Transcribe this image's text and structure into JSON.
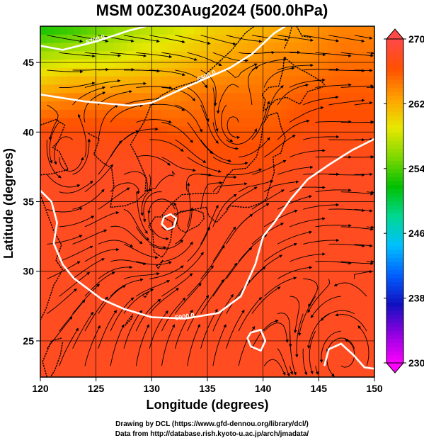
{
  "chart_data": {
    "type": "heatmap",
    "title": "MSM 00Z30Aug2024 (500.0hPa)",
    "xlabel": "Longitude (degrees)",
    "ylabel": "Latitude  (degrees)",
    "xlim": [
      120,
      150
    ],
    "ylim": [
      22.4,
      47.6
    ],
    "x_ticks": [
      120,
      125,
      130,
      135,
      140,
      145,
      150
    ],
    "y_ticks": [
      25,
      30,
      35,
      40,
      45
    ],
    "colorbar": {
      "min": 230,
      "max": 270,
      "ticks": [
        230,
        238,
        246,
        254,
        262,
        270
      ],
      "colors": [
        "#ff00ff",
        "#9000e0",
        "#1010c0",
        "#0060ff",
        "#00c0ff",
        "#00d890",
        "#00c000",
        "#80d800",
        "#e8e800",
        "#ffa000",
        "#ff5000",
        "#ff4848"
      ]
    },
    "temperature_field": [
      {
        "lat": 47.6,
        "values": [
          252,
          253,
          255,
          257,
          258,
          260,
          261,
          262,
          263,
          264,
          264
        ]
      },
      {
        "lat": 45.0,
        "values": [
          258,
          259,
          259,
          260,
          261,
          262,
          263,
          264,
          264,
          265,
          265
        ]
      },
      {
        "lat": 42.5,
        "values": [
          263,
          264,
          264,
          264,
          264,
          265,
          265,
          265,
          266,
          266,
          266
        ]
      },
      {
        "lat": 40.0,
        "values": [
          267,
          267,
          267,
          267,
          266,
          266,
          266,
          266,
          267,
          267,
          267
        ]
      },
      {
        "lat": 37.5,
        "values": [
          268,
          268,
          268,
          268,
          268,
          267,
          267,
          267,
          268,
          268,
          268
        ]
      },
      {
        "lat": 35.0,
        "values": [
          268,
          268,
          268,
          268,
          268,
          268,
          268,
          268,
          268,
          268,
          268
        ]
      },
      {
        "lat": 30.0,
        "values": [
          268,
          268,
          268,
          268,
          268,
          268,
          268,
          268,
          268,
          268,
          268
        ]
      },
      {
        "lat": 25.0,
        "values": [
          268,
          268,
          268,
          268,
          268,
          268,
          268,
          268,
          268,
          268,
          268
        ]
      },
      {
        "lat": 22.4,
        "values": [
          268,
          268,
          268,
          268,
          268,
          268,
          268,
          268,
          268,
          268,
          268
        ]
      }
    ],
    "temperature_lons": [
      120,
      123,
      126,
      129,
      132,
      135,
      138,
      141,
      144,
      147,
      150
    ],
    "contours": [
      {
        "label": "5700.0",
        "points": [
          [
            120,
            46.2
          ],
          [
            122,
            45.9
          ],
          [
            125,
            46.5
          ],
          [
            128,
            47.3
          ],
          [
            129.5,
            47.6
          ]
        ]
      },
      {
        "label": "5800.0",
        "points": [
          [
            120,
            42.7
          ],
          [
            124,
            42.2
          ],
          [
            128,
            41.9
          ],
          [
            130,
            42.1
          ],
          [
            133,
            43.2
          ],
          [
            135,
            43.9
          ],
          [
            137,
            44.6
          ],
          [
            139,
            45.6
          ],
          [
            141,
            47.1
          ],
          [
            142,
            47.6
          ]
        ]
      },
      {
        "label": "5900.0",
        "points": [
          [
            120,
            35.8
          ],
          [
            121,
            35.0
          ],
          [
            121.5,
            33.5
          ],
          [
            121.2,
            32.0
          ],
          [
            122,
            30.5
          ],
          [
            123,
            29.5
          ],
          [
            124,
            28.9
          ],
          [
            125.5,
            28.0
          ],
          [
            127.5,
            27.3
          ],
          [
            130,
            26.7
          ],
          [
            133,
            26.6
          ],
          [
            136,
            27.0
          ],
          [
            138,
            28.2
          ],
          [
            139.3,
            30.5
          ],
          [
            140,
            32.5
          ],
          [
            141,
            33.5
          ],
          [
            142.5,
            35.2
          ],
          [
            144,
            36.6
          ],
          [
            146,
            37.7
          ],
          [
            148,
            38.7
          ],
          [
            150,
            39.5
          ]
        ]
      },
      {
        "label": "",
        "points": [
          [
            131.1,
            33.9
          ],
          [
            131.7,
            34.1
          ],
          [
            132.2,
            33.8
          ],
          [
            132.0,
            33.2
          ],
          [
            131.4,
            33.0
          ],
          [
            130.9,
            33.4
          ],
          [
            131.1,
            33.9
          ]
        ]
      },
      {
        "label": "",
        "points": [
          [
            138.9,
            25.6
          ],
          [
            139.8,
            25.8
          ],
          [
            140.2,
            25.0
          ],
          [
            139.8,
            24.3
          ],
          [
            138.9,
            24.6
          ],
          [
            138.6,
            25.2
          ],
          [
            138.9,
            25.6
          ]
        ]
      },
      {
        "label": "",
        "points": [
          [
            145.5,
            23.2
          ],
          [
            145.9,
            24.4
          ],
          [
            147.0,
            24.8
          ],
          [
            148.1,
            24.0
          ],
          [
            149.1,
            23.1
          ],
          [
            150,
            23.0
          ]
        ]
      }
    ],
    "vortices": [
      {
        "lon": 131.5,
        "lat": 33.5
      },
      {
        "lon": 137.5,
        "lat": 40.2
      },
      {
        "lon": 147.2,
        "lat": 23.8
      },
      {
        "lon": 122.5,
        "lat": 37.8
      }
    ]
  },
  "credits": {
    "line1": "Drawing by DCL (https://www.gfd-dennou.org/library/dcl/)",
    "line2": "Data from http://database.rish.kyoto-u.ac.jp/arch/jmadata/"
  }
}
